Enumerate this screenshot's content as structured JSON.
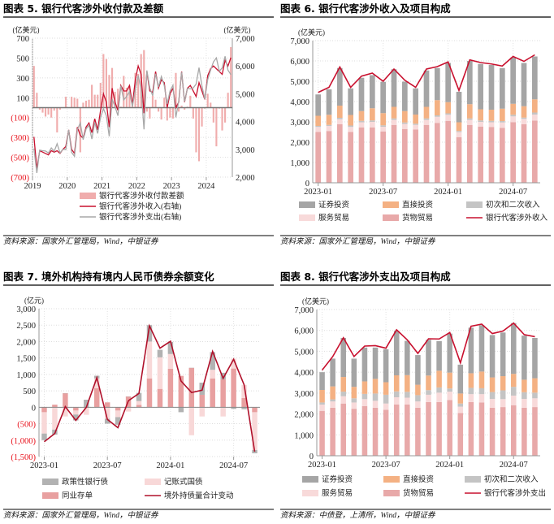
{
  "chart_data": [
    {
      "type": "bar+line",
      "title": "图表 5. 银行代客涉外收付款及差额",
      "unit_left": "(亿美元)",
      "unit_right": "(亿美元)",
      "source": "资料来源：国家外汇管理局，Wind，中银证券",
      "xlim": [
        "2019-01",
        "2024-09"
      ],
      "xticks": [
        {
          "label": "2019",
          "at": "2019-01"
        },
        {
          "label": "2020",
          "at": "2020-01"
        },
        {
          "label": "2021",
          "at": "2021-01"
        },
        {
          "label": "2022",
          "at": "2022-01"
        },
        {
          "label": "2023",
          "at": "2023-01"
        },
        {
          "label": "2024",
          "at": "2024-01"
        }
      ],
      "ylim_left": [
        -700,
        700
      ],
      "yticks_left": [
        -700,
        -500,
        -300,
        -100,
        100,
        300,
        500,
        700
      ],
      "ylim_right": [
        2000,
        7000
      ],
      "yticks_right": [
        2000,
        3000,
        4000,
        5000,
        6000,
        7000
      ],
      "grid": true,
      "legend": "bottom",
      "series": [
        {
          "name": "银行代客涉外收付款差额",
          "kind": "bar",
          "axis": "left",
          "color": "#f0adad",
          "values": [
            420,
            150,
            -20,
            -50,
            -90,
            -70,
            -100,
            -30,
            -250,
            -20,
            0,
            110,
            0,
            110,
            100,
            90,
            -450,
            50,
            70,
            80,
            230,
            130,
            130,
            250,
            540,
            490,
            330,
            400,
            160,
            190,
            10,
            320,
            200,
            220,
            60,
            350,
            340,
            540,
            580,
            -40,
            -110,
            120,
            80,
            -40,
            -120,
            100,
            -130,
            -100,
            -110,
            350,
            -40,
            20,
            -20,
            10,
            120,
            -110,
            -450,
            -540,
            -190,
            -10,
            140,
            50,
            -150,
            -390,
            -10,
            -230,
            -150,
            150,
            610
          ]
        },
        {
          "name": "银行代客涉外收入(右轴)",
          "kind": "line",
          "axis": "right",
          "color": "#c8102e",
          "values": [
            3450,
            2300,
            2950,
            2900,
            2850,
            2800,
            2950,
            2900,
            2950,
            2850,
            3000,
            3100,
            3700,
            3000,
            2850,
            3800,
            3500,
            3400,
            3800,
            3950,
            3600,
            4100,
            3700,
            4400,
            5000,
            4700,
            3800,
            5200,
            4700,
            4400,
            5300,
            5100,
            5100,
            5300,
            4600,
            5500,
            6000,
            5700,
            4300,
            5800,
            5100,
            5050,
            5800,
            5200,
            5500,
            5400,
            4500,
            5000,
            5200,
            4500,
            4700,
            5800,
            4700,
            5200,
            5300,
            5100,
            4900,
            5400,
            5100,
            4800,
            5650,
            5900,
            6000,
            5900,
            5800,
            5700,
            6200,
            6000,
            6300
          ]
        },
        {
          "name": "银行代客涉外支出(右轴)",
          "kind": "line",
          "axis": "right",
          "color": "#a8a8a8",
          "values": [
            3030,
            2150,
            2970,
            2950,
            2940,
            2870,
            3050,
            2930,
            3200,
            2870,
            3000,
            2990,
            3700,
            2890,
            2750,
            3710,
            3950,
            3350,
            3730,
            3870,
            3370,
            3970,
            3570,
            4150,
            4460,
            4210,
            3470,
            4800,
            4540,
            4210,
            5290,
            4780,
            4900,
            5080,
            4540,
            5150,
            5660,
            5160,
            3720,
            5840,
            5210,
            4930,
            5720,
            5240,
            5620,
            5300,
            4630,
            5100,
            5310,
            4150,
            4740,
            5780,
            4720,
            5190,
            5180,
            5210,
            5350,
            5940,
            5290,
            4810,
            5510,
            5850,
            6150,
            6290,
            5810,
            5930,
            6350,
            5850,
            5690
          ]
        }
      ]
    },
    {
      "type": "stacked-bar+line",
      "title": "图表 6. 银行代客涉外收入及项目构成",
      "unit_left": "(亿美元)",
      "source": "资料来源：国家外汇管理局，Wind，中银证券",
      "xlim": [
        "2023-01",
        "2024-09"
      ],
      "xticks": [
        {
          "label": "2023-01",
          "at": "2023-01"
        },
        {
          "label": "2023-07",
          "at": "2023-07"
        },
        {
          "label": "2024-01",
          "at": "2024-01"
        },
        {
          "label": "2024-07",
          "at": "2024-07"
        }
      ],
      "ylim": [
        0,
        7000
      ],
      "yticks": [
        0,
        1000,
        2000,
        3000,
        4000,
        5000,
        6000,
        7000
      ],
      "grid": true,
      "legend": "bottom",
      "legend_order": [
        4,
        3,
        2,
        1,
        0,
        5
      ],
      "series": [
        {
          "name": "货物贸易",
          "kind": "bar",
          "color": "#e8a9a9",
          "values": [
            2500,
            2550,
            2880,
            2500,
            2730,
            2730,
            2530,
            2850,
            2650,
            2620,
            2850,
            2950,
            3050,
            2250,
            2850,
            2770,
            2750,
            2700,
            2980,
            2880,
            3060
          ]
        },
        {
          "name": "服务贸易",
          "kind": "bar",
          "color": "#f8dada",
          "values": [
            250,
            250,
            250,
            250,
            250,
            270,
            230,
            250,
            250,
            230,
            250,
            300,
            300,
            250,
            250,
            230,
            230,
            270,
            290,
            270,
            300
          ]
        },
        {
          "name": "初次和二次收入",
          "kind": "bar",
          "color": "#c4c4c4",
          "values": [
            50,
            50,
            70,
            70,
            70,
            70,
            70,
            70,
            70,
            60,
            70,
            70,
            70,
            50,
            70,
            70,
            70,
            70,
            80,
            60,
            100
          ]
        },
        {
          "name": "直接投资",
          "kind": "bar",
          "color": "#f4b183",
          "values": [
            500,
            500,
            600,
            520,
            480,
            600,
            600,
            570,
            560,
            450,
            570,
            750,
            550,
            430,
            700,
            550,
            550,
            610,
            540,
            560,
            650
          ]
        },
        {
          "name": "证券投资",
          "kind": "bar",
          "color": "#a5a5a5",
          "values": [
            1050,
            1250,
            1850,
            1310,
            1640,
            1630,
            1540,
            1850,
            1450,
            1290,
            1790,
            1580,
            1930,
            1500,
            2130,
            2230,
            2200,
            2000,
            2280,
            2130,
            2110
          ]
        },
        {
          "name": "银行代客涉外收入",
          "kind": "line",
          "color": "#c8102e",
          "values": [
            4450,
            4700,
            5700,
            4700,
            5250,
            5400,
            5000,
            5600,
            5050,
            4700,
            5600,
            5720,
            5950,
            4550,
            6050,
            5920,
            5850,
            5750,
            6220,
            5980,
            6300
          ]
        }
      ]
    },
    {
      "type": "stacked-bar+line",
      "title": "图表 7. 境外机构持有境内人民币债券余额变化",
      "unit_left": "(亿元)",
      "source": "资料来源：国家外汇管理局，Wind，中银证券",
      "xlim": [
        "2023-01",
        "2024-09"
      ],
      "xticks": [
        {
          "label": "2023-01",
          "at": "2023-01"
        },
        {
          "label": "2023-07",
          "at": "2023-07"
        },
        {
          "label": "2024-01",
          "at": "2024-01"
        },
        {
          "label": "2024-07",
          "at": "2024-07"
        }
      ],
      "ylim": [
        -1500,
        3000
      ],
      "yticks": [
        -1500,
        -1000,
        -500,
        0,
        500,
        1000,
        1500,
        2000,
        2500,
        3000
      ],
      "grid": true,
      "legend": "bottom",
      "legend_order": [
        2,
        1,
        0,
        3
      ],
      "series": [
        {
          "name": "同业存单",
          "kind": "bar",
          "color": "#e8a0a0",
          "values": [
            -150,
            80,
            430,
            -100,
            0,
            580,
            150,
            -100,
            330,
            70,
            880,
            560,
            1170,
            960,
            1200,
            380,
            880,
            850,
            1180,
            280,
            -150
          ]
        },
        {
          "name": "记账式国债",
          "kind": "bar",
          "color": "#f8d8d8",
          "values": [
            -650,
            -680,
            -280,
            -120,
            -230,
            300,
            -350,
            -200,
            -130,
            120,
            1120,
            960,
            450,
            0,
            -850,
            -280,
            260,
            -280,
            300,
            400,
            -1150
          ]
        },
        {
          "name": "政策性银行债",
          "kind": "bar",
          "color": "#b2b2b2",
          "values": [
            -200,
            -150,
            0,
            -180,
            230,
            80,
            -150,
            -230,
            0,
            250,
            500,
            230,
            370,
            -150,
            0,
            370,
            540,
            200,
            -50,
            -60,
            -100
          ]
        },
        {
          "name": "境外持债量合计变动",
          "kind": "line",
          "color": "#b0102a",
          "values": [
            -1050,
            -800,
            20,
            -400,
            0,
            900,
            -370,
            -620,
            200,
            420,
            2480,
            1800,
            2010,
            800,
            450,
            520,
            1700,
            880,
            1460,
            680,
            -1350
          ]
        }
      ]
    },
    {
      "type": "stacked-bar+line",
      "title": "图表 8. 银行代客涉外支出及项目构成",
      "unit_left": "(亿美元)",
      "source": "资料来源：中债登，上清所，Wind，中银证券",
      "xlim": [
        "2023-01",
        "2024-09"
      ],
      "xticks": [
        {
          "label": "2023-01",
          "at": "2023-01"
        },
        {
          "label": "2023-07",
          "at": "2023-07"
        },
        {
          "label": "2024-01",
          "at": "2024-01"
        },
        {
          "label": "2024-07",
          "at": "2024-07"
        }
      ],
      "ylim": [
        0,
        7000
      ],
      "yticks": [
        0,
        1000,
        2000,
        3000,
        4000,
        5000,
        6000,
        7000
      ],
      "grid": true,
      "legend": "bottom",
      "legend_order": [
        4,
        3,
        2,
        1,
        0,
        5
      ],
      "series": [
        {
          "name": "货物贸易",
          "kind": "bar",
          "color": "#e8a9a9",
          "values": [
            2150,
            2300,
            2500,
            2250,
            2380,
            2300,
            2200,
            2450,
            2450,
            2300,
            2570,
            2570,
            2670,
            2050,
            2570,
            2550,
            2300,
            2330,
            2420,
            2300,
            2330
          ]
        },
        {
          "name": "服务贸易",
          "kind": "bar",
          "color": "#f8dada",
          "values": [
            300,
            300,
            350,
            300,
            330,
            330,
            300,
            350,
            330,
            300,
            350,
            450,
            400,
            300,
            380,
            400,
            420,
            380,
            460,
            420,
            420
          ]
        },
        {
          "name": "初次和二次收入",
          "kind": "bar",
          "color": "#c4c4c4",
          "values": [
            100,
            100,
            220,
            200,
            250,
            350,
            420,
            280,
            280,
            300,
            220,
            250,
            150,
            150,
            300,
            280,
            330,
            420,
            420,
            320,
            270
          ]
        },
        {
          "name": "直接投资",
          "kind": "bar",
          "color": "#f4b183",
          "values": [
            600,
            620,
            700,
            550,
            600,
            700,
            600,
            770,
            800,
            500,
            700,
            800,
            760,
            480,
            700,
            800,
            700,
            680,
            620,
            600,
            690
          ]
        },
        {
          "name": "证券投资",
          "kind": "bar",
          "color": "#a5a5a5",
          "values": [
            850,
            1330,
            1870,
            1350,
            1620,
            1500,
            1580,
            2130,
            1640,
            1420,
            1710,
            1420,
            1870,
            1380,
            2180,
            2220,
            2030,
            2090,
            2430,
            2110,
            1930
          ]
        },
        {
          "name": "银行代客涉外支出",
          "kind": "line",
          "color": "#c8102e",
          "values": [
            4100,
            4750,
            5650,
            4750,
            5250,
            5270,
            5150,
            6030,
            5550,
            4900,
            5600,
            5590,
            5900,
            4450,
            6200,
            6300,
            5850,
            5970,
            6350,
            5800,
            5700
          ]
        }
      ]
    }
  ]
}
